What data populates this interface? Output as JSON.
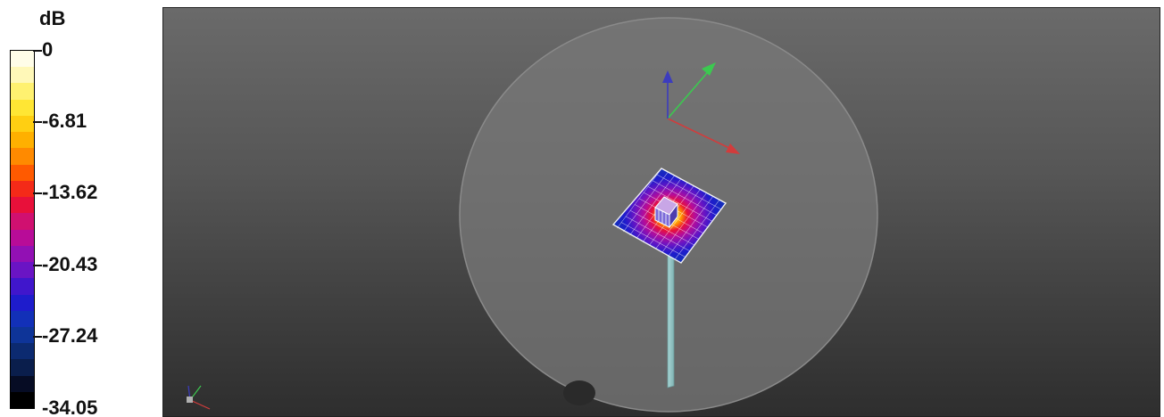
{
  "legend": {
    "unit": "dB",
    "ticks": [
      "0",
      "-6.81",
      "-13.62",
      "-20.43",
      "-27.24",
      "-34.05"
    ],
    "colors": [
      "#fffde8",
      "#fff8b8",
      "#fff170",
      "#ffe634",
      "#ffcf12",
      "#ffb000",
      "#ff8a00",
      "#ff5a00",
      "#f42a18",
      "#e8103a",
      "#d01070",
      "#b80c98",
      "#9210b4",
      "#6a14c4",
      "#4016cc",
      "#1e1ccc",
      "#1230b8",
      "#0e3498",
      "#0c2a70",
      "#0a1e4c",
      "#060c24",
      "#000000"
    ]
  },
  "viewport": {
    "background_top": "#6a6a6a",
    "background_bottom": "#2e2e2e",
    "ground_color": "#777777",
    "axis_colors": {
      "x": "#d23c3c",
      "y": "#3cc850",
      "z": "#3c3cbe"
    },
    "icons": [
      "main-axis-triad-icon",
      "corner-axis-triad-icon",
      "feed-post-icon",
      "ground-hole-icon"
    ]
  }
}
